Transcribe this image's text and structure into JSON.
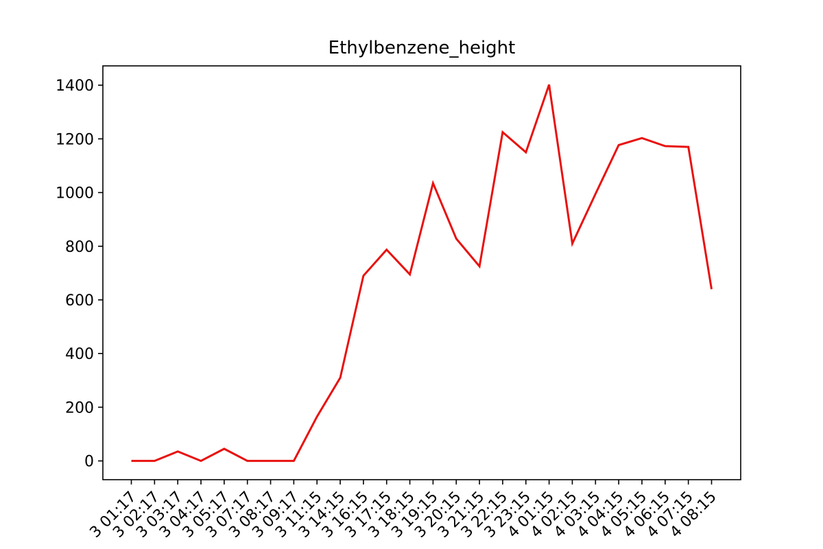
{
  "chart_data": {
    "type": "line",
    "title": "Ethylbenzene_height",
    "xlabel": "",
    "ylabel": "",
    "categories": [
      "3 01:17",
      "3 02:17",
      "3 03:17",
      "3 04:17",
      "3 05:17",
      "3 07:17",
      "3 08:17",
      "3 09:17",
      "3 11:15",
      "3 14:15",
      "3 16:15",
      "3 17:15",
      "3 18:15",
      "3 19:15",
      "3 20:15",
      "3 21:15",
      "3 22:15",
      "3 23:15",
      "4 01:15",
      "4 02:15",
      "4 03:15",
      "4 04:15",
      "4 05:15",
      "4 06:15",
      "4 07:15",
      "4 08:15"
    ],
    "series": [
      {
        "color": "#e8110f",
        "values": [
          0,
          0,
          35,
          0,
          45,
          0,
          0,
          0,
          165,
          310,
          690,
          787,
          695,
          1035,
          828,
          725,
          1225,
          1150,
          1402,
          810,
          995,
          1177,
          1203,
          1173,
          1170,
          640
        ]
      }
    ],
    "yticks": [
      0,
      200,
      400,
      600,
      800,
      1000,
      1200,
      1400
    ],
    "ylim": [
      -70,
      1472
    ],
    "grid": false,
    "legend": false
  }
}
